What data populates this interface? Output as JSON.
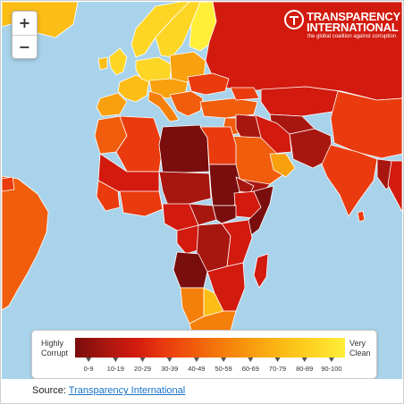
{
  "map": {
    "zoom_in_label": "+",
    "zoom_out_label": "−"
  },
  "brand": {
    "name_line1": "TRANSPARENCY",
    "name_line2": "INTERNATIONAL",
    "tagline": "the global coalition against corruption"
  },
  "legend": {
    "low_label_line1": "Highly",
    "low_label_line2": "Corrupt",
    "high_label_line1": "Very",
    "high_label_line2": "Clean",
    "bins": [
      {
        "label": "0-9",
        "color": "#7a0d0d"
      },
      {
        "label": "10-19",
        "color": "#a81610"
      },
      {
        "label": "20-29",
        "color": "#d21a0f"
      },
      {
        "label": "30-39",
        "color": "#ea3b0f"
      },
      {
        "label": "40-49",
        "color": "#f05d0c"
      },
      {
        "label": "50-59",
        "color": "#f57f0b"
      },
      {
        "label": "60-69",
        "color": "#f8a00e"
      },
      {
        "label": "70-79",
        "color": "#fbbd16"
      },
      {
        "label": "80-89",
        "color": "#fdd524"
      },
      {
        "label": "90-100",
        "color": "#ffee3a"
      }
    ]
  },
  "source": {
    "prefix": "Source: ",
    "link_text": "Transparency International"
  },
  "colors": {
    "sea": "#a9d3ea",
    "border": "#ffffff",
    "other_land": "#f3f3f3"
  }
}
